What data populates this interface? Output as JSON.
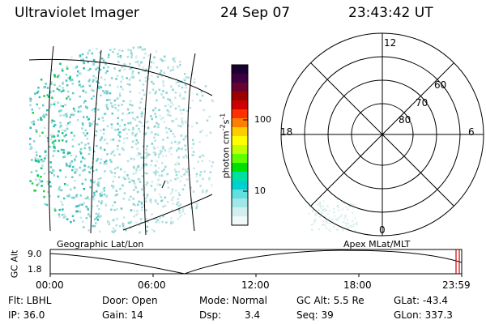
{
  "header": {
    "instrument": "Ultraviolet Imager",
    "date": "24 Sep 07",
    "time": "23:43:42 UT"
  },
  "colorbar": {
    "unit_label": "photon cm",
    "unit_sup1": "-2",
    "unit_mid": "s",
    "unit_sup2": "-1",
    "ticks": [
      "100",
      "10"
    ],
    "colors": [
      "#1a0030",
      "#3c0040",
      "#6a0030",
      "#9a0000",
      "#cc0000",
      "#ff3000",
      "#ff8000",
      "#ffcc00",
      "#ffff00",
      "#c0ff00",
      "#60ff00",
      "#00e000",
      "#00e0a0",
      "#00d0d0",
      "#60e0e0",
      "#a0e8e8",
      "#d0f0f0",
      "#f0f8f8"
    ]
  },
  "polar_plot": {
    "mlt_labels": [
      "12",
      "18",
      "6",
      "0"
    ],
    "lat_labels": [
      "60",
      "70",
      "80"
    ]
  },
  "timeline": {
    "ylabel": "GC Alt",
    "yticks": [
      "9.0",
      "1.8"
    ],
    "left_caption": "Geographic Lat/Lon",
    "right_caption": "Apex MLat/MLT",
    "xticks": [
      "00:00",
      "06:00",
      "12:00",
      "18:00",
      "23:59"
    ],
    "marker_color": "#cc0000"
  },
  "status": {
    "flt": "Flt: LBHL",
    "ip": "IP: 36.0",
    "door": "Door: Open",
    "gain": "Gain: 14",
    "mode": "Mode: Normal",
    "dsp_label": "Dsp:",
    "dsp_value": "3.4",
    "gc_alt": "GC Alt: 5.5 Re",
    "seq": "Seq: 39",
    "glat": "GLat: -43.4",
    "glon": "GLon: 337.3"
  }
}
